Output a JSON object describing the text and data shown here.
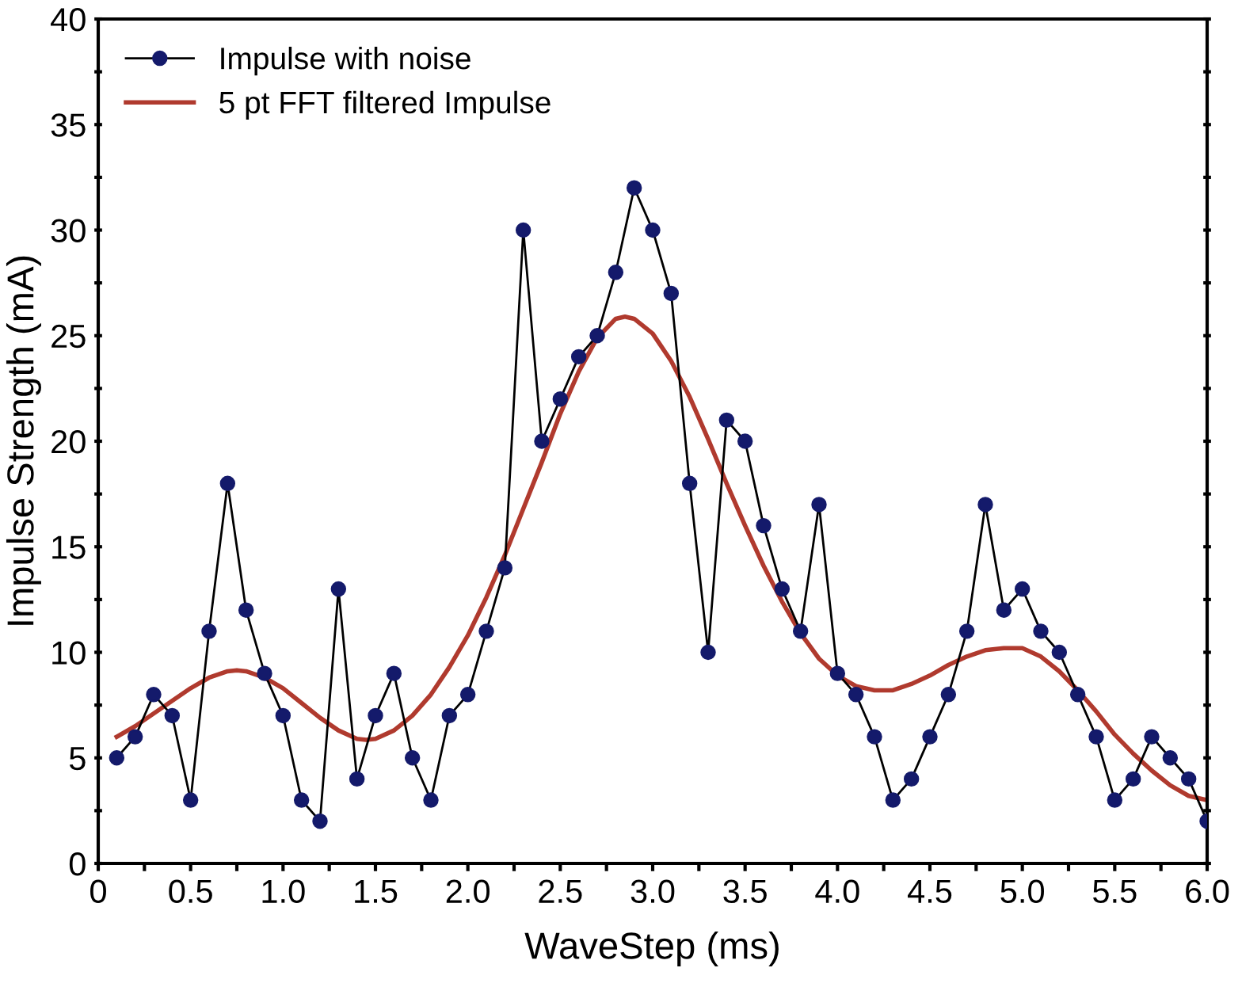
{
  "chart_data": {
    "type": "line",
    "xlabel": "WaveStep (ms)",
    "ylabel": "Impulse Strength (mA)",
    "legend": "top left",
    "grid": false,
    "xlim": [
      0,
      6
    ],
    "ylim": [
      0,
      40
    ],
    "xticks": [
      0,
      {
        "value": 0.25,
        "label": null
      },
      0.5,
      {
        "value": 0.75,
        "label": null
      },
      {
        "value": 1,
        "label": "1.0"
      },
      {
        "value": 1.25,
        "label": null
      },
      1.5,
      {
        "value": 1.75,
        "label": null
      },
      {
        "value": 2,
        "label": "2.0"
      },
      {
        "value": 2.25,
        "label": null
      },
      2.5,
      {
        "value": 2.75,
        "label": null
      },
      {
        "value": 3,
        "label": "3.0"
      },
      {
        "value": 3.25,
        "label": null
      },
      3.5,
      {
        "value": 3.75,
        "label": null
      },
      {
        "value": 4,
        "label": "4.0"
      },
      {
        "value": 4.25,
        "label": null
      },
      4.5,
      {
        "value": 4.75,
        "label": null
      },
      {
        "value": 5,
        "label": "5.0"
      },
      {
        "value": 5.25,
        "label": null
      },
      5.5,
      {
        "value": 5.75,
        "label": null
      },
      {
        "value": 6,
        "label": "6.0"
      }
    ],
    "yticks": [
      0,
      {
        "value": 2.5,
        "label": null
      },
      5,
      {
        "value": 7.5,
        "label": null
      },
      10,
      {
        "value": 12.5,
        "label": null
      },
      15,
      {
        "value": 17.5,
        "label": null
      },
      20,
      {
        "value": 22.5,
        "label": null
      },
      25,
      {
        "value": 27.5,
        "label": null
      },
      30,
      {
        "value": 32.5,
        "label": null
      },
      35,
      {
        "value": 37.5,
        "label": null
      },
      40
    ],
    "series": [
      {
        "name": "Impulse with noise",
        "color": "#000000",
        "marker": "circle",
        "line_style": "solid",
        "x": [
          0.1,
          0.2,
          0.3,
          0.4,
          0.5,
          0.6,
          0.7,
          0.8,
          0.9,
          1.0,
          1.1,
          1.2,
          1.3,
          1.4,
          1.5,
          1.6,
          1.7,
          1.8,
          1.9,
          2.0,
          2.1,
          2.2,
          2.3,
          2.4,
          2.5,
          2.6,
          2.7,
          2.8,
          2.9,
          3.0,
          3.1,
          3.2,
          3.3,
          3.4,
          3.5,
          3.6,
          3.7,
          3.8,
          3.9,
          4.0,
          4.1,
          4.2,
          4.3,
          4.4,
          4.5,
          4.6,
          4.7,
          4.8,
          4.9,
          5.0,
          5.1,
          5.2,
          5.3,
          5.4,
          5.5,
          5.6,
          5.7,
          5.8,
          5.9,
          6.0
        ],
        "values": [
          5,
          6,
          8,
          7,
          3,
          11,
          18,
          12,
          9,
          7,
          3,
          2,
          13,
          4,
          7,
          9,
          5,
          3,
          7,
          8,
          11,
          14,
          30,
          20,
          22,
          24,
          25,
          28,
          32,
          30,
          27,
          18,
          10,
          21,
          20,
          16,
          13,
          11,
          17,
          9,
          8,
          6,
          3,
          4,
          6,
          8,
          11,
          17,
          12,
          13,
          11,
          10,
          8,
          6,
          3,
          4,
          6,
          5,
          4,
          2
        ]
      },
      {
        "name": "5 pt FFT filtered Impulse",
        "color": "#b03a2e",
        "marker": "none",
        "line_style": "solid",
        "x": [
          0.1,
          0.2,
          0.3,
          0.4,
          0.5,
          0.6,
          0.7,
          0.75,
          0.8,
          0.9,
          1.0,
          1.1,
          1.2,
          1.3,
          1.4,
          1.45,
          1.5,
          1.6,
          1.7,
          1.8,
          1.9,
          2.0,
          2.1,
          2.2,
          2.3,
          2.4,
          2.5,
          2.6,
          2.7,
          2.8,
          2.85,
          2.9,
          3.0,
          3.1,
          3.2,
          3.3,
          3.4,
          3.5,
          3.6,
          3.7,
          3.8,
          3.9,
          4.0,
          4.1,
          4.2,
          4.3,
          4.4,
          4.5,
          4.6,
          4.7,
          4.8,
          4.9,
          5.0,
          5.1,
          5.2,
          5.3,
          5.4,
          5.5,
          5.6,
          5.7,
          5.8,
          5.9,
          6.0
        ],
        "values": [
          6.0,
          6.5,
          7.1,
          7.7,
          8.3,
          8.8,
          9.1,
          9.15,
          9.1,
          8.8,
          8.3,
          7.6,
          6.9,
          6.3,
          5.9,
          5.85,
          5.9,
          6.3,
          7.0,
          8.0,
          9.3,
          10.8,
          12.6,
          14.6,
          16.8,
          19.0,
          21.3,
          23.3,
          24.9,
          25.8,
          25.9,
          25.8,
          25.1,
          23.8,
          22.1,
          20.1,
          18.0,
          16.0,
          14.1,
          12.4,
          10.9,
          9.7,
          8.9,
          8.4,
          8.2,
          8.2,
          8.5,
          8.9,
          9.4,
          9.8,
          10.1,
          10.2,
          10.2,
          9.8,
          9.1,
          8.2,
          7.2,
          6.1,
          5.2,
          4.4,
          3.7,
          3.2,
          3.0
        ]
      }
    ]
  }
}
